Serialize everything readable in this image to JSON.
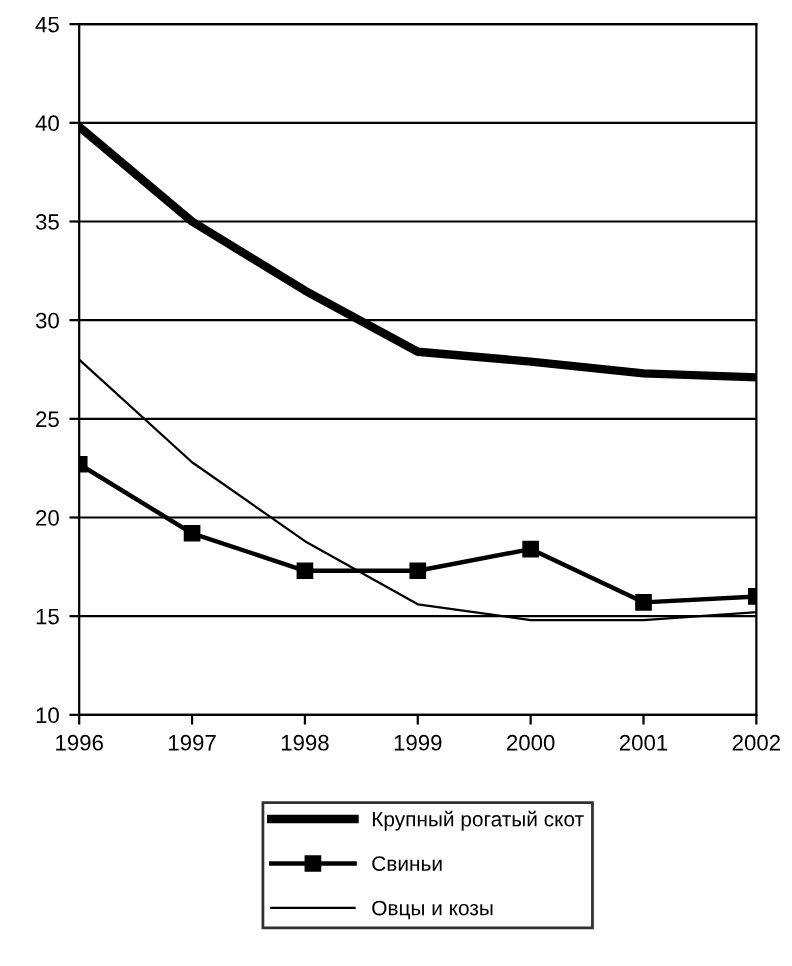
{
  "chart_data": {
    "type": "line",
    "x": [
      1996,
      1997,
      1998,
      1999,
      2000,
      2001,
      2002
    ],
    "series": [
      {
        "name": "Крупный рогатый скот",
        "color": "#000000",
        "marker": "none",
        "values": [
          39.8,
          35.0,
          31.5,
          28.4,
          27.9,
          27.3,
          27.1
        ]
      },
      {
        "name": "Свиньи",
        "color": "#000000",
        "marker": "square",
        "values": [
          22.7,
          19.2,
          17.3,
          17.3,
          18.4,
          15.7,
          16.0
        ]
      },
      {
        "name": "Овцы и козы",
        "color": "#000000",
        "marker": "none",
        "values": [
          28.0,
          22.8,
          18.8,
          15.6,
          14.8,
          14.8,
          15.2
        ]
      }
    ],
    "xlim": [
      1996,
      2002
    ],
    "xticks": [
      1996,
      1997,
      1998,
      1999,
      2000,
      2001,
      2002
    ],
    "ylim": [
      10,
      45
    ],
    "yticks": [
      10,
      15,
      20,
      25,
      30,
      35,
      40,
      45
    ],
    "grid": "y",
    "legend": "bottom"
  }
}
